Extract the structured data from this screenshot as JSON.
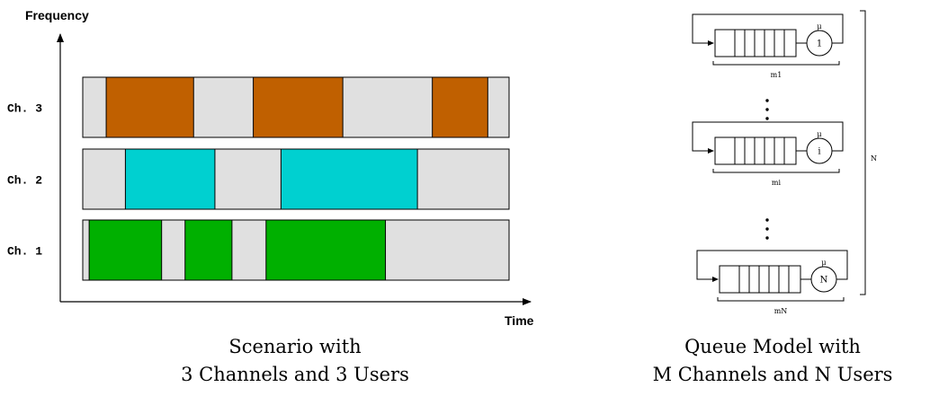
{
  "scenario": {
    "axis": {
      "y_label": "Frequency",
      "x_label": "Time"
    },
    "channels": [
      {
        "label": "Ch. 3",
        "color": "#c06000",
        "busy": [
          [
            0.055,
            0.26
          ],
          [
            0.4,
            0.61
          ],
          [
            0.82,
            0.95
          ]
        ]
      },
      {
        "label": "Ch. 2",
        "color": "#00d0d0",
        "busy": [
          [
            0.1,
            0.31
          ],
          [
            0.465,
            0.785
          ]
        ]
      },
      {
        "label": "Ch. 1",
        "color": "#00b000",
        "busy": [
          [
            0.015,
            0.185
          ],
          [
            0.24,
            0.35
          ],
          [
            0.43,
            0.71
          ]
        ]
      }
    ],
    "idle_color": "#e0e0e0",
    "caption": [
      "Scenario with",
      "3 Channels and 3 Users"
    ]
  },
  "queue_model": {
    "queues": [
      {
        "server": "1",
        "rate": "μ",
        "size": "m1"
      },
      {
        "server": "i",
        "rate": "μ",
        "size": "mi"
      },
      {
        "server": "N",
        "rate": "μ",
        "size": "mN"
      }
    ],
    "total": "N",
    "caption": [
      "Queue Model with",
      "M Channels and N Users"
    ]
  }
}
